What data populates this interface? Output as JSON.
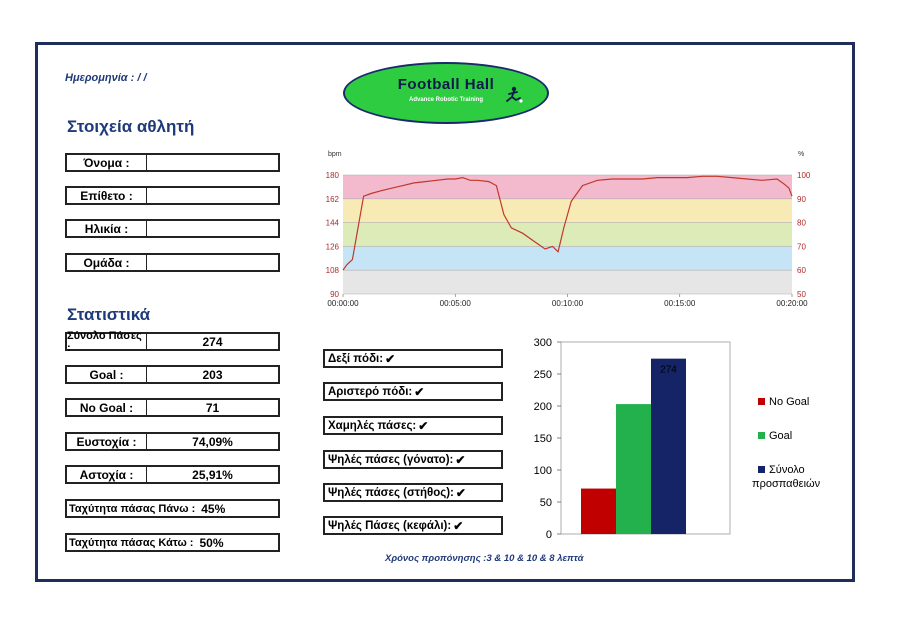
{
  "header": {
    "date_label": "Ημερομηνία : / /",
    "logo": {
      "title": "Football Hall",
      "subtitle": "Advance Robotic Training"
    }
  },
  "athlete": {
    "title": "Στοιχεία αθλητή",
    "fields": [
      {
        "label": "Όνομα :",
        "value": ""
      },
      {
        "label": "Επίθετο :",
        "value": ""
      },
      {
        "label": "Ηλικία :",
        "value": ""
      },
      {
        "label": "Ομάδα :",
        "value": ""
      }
    ]
  },
  "stats": {
    "title": "Στατιστικά",
    "rows": [
      {
        "label": "Σύνολο Πάσες :",
        "value": "274"
      },
      {
        "label": "Goal :",
        "value": "203"
      },
      {
        "label": "No Goal :",
        "value": "71"
      },
      {
        "label": "Ευστοχία :",
        "value": "74,09%"
      },
      {
        "label": "Αστοχία :",
        "value": "25,91%"
      },
      {
        "label": "Ταχύτητα πάσας Πάνω :",
        "value": "45%"
      },
      {
        "label": "Ταχύτητα πάσας Κάτω :",
        "value": "50%"
      }
    ]
  },
  "skills": [
    {
      "label": "Δεξί πόδι:",
      "check": "✔"
    },
    {
      "label": "Αριστερό πόδι:",
      "check": "✔"
    },
    {
      "label": "Χαμηλές  πάσες:",
      "check": "✔"
    },
    {
      "label": "Ψηλές πάσες (γόνατο):",
      "check": "✔"
    },
    {
      "label": "Ψηλές πάσες (στήθος):",
      "check": "✔"
    },
    {
      "label": "Ψηλές Πάσες (κεφάλι):",
      "check": "✔"
    }
  ],
  "footer": {
    "training_time": "Χρόνος προπόνησης :3 & 10 & 10 & 8 λεπτά"
  },
  "chart_data": [
    {
      "type": "line",
      "ylabel_left": "bpm",
      "ylabel_right": "%",
      "ylim": [
        90,
        180
      ],
      "yticks": [
        90,
        108,
        126,
        144,
        162,
        180
      ],
      "yticks_right": [
        50,
        60,
        70,
        80,
        90,
        100
      ],
      "xticks": [
        "00:00:00",
        "00:05:00",
        "00:10:00",
        "00:15:00",
        "00:20:00"
      ],
      "xlim_seconds": [
        0,
        1200
      ],
      "zones": [
        {
          "from": 90,
          "to": 108,
          "color": "#e6e6e6"
        },
        {
          "from": 108,
          "to": 126,
          "color": "#c5e5f6"
        },
        {
          "from": 126,
          "to": 144,
          "color": "#dcebb8"
        },
        {
          "from": 144,
          "to": 162,
          "color": "#f7eab5"
        },
        {
          "from": 162,
          "to": 180,
          "color": "#f3b9cd"
        }
      ],
      "line_color": "#c0392b",
      "points": [
        [
          0,
          108
        ],
        [
          10,
          112
        ],
        [
          25,
          116
        ],
        [
          40,
          140
        ],
        [
          55,
          164
        ],
        [
          75,
          166
        ],
        [
          100,
          168
        ],
        [
          130,
          170
        ],
        [
          160,
          172
        ],
        [
          190,
          174
        ],
        [
          220,
          175
        ],
        [
          250,
          176
        ],
        [
          280,
          177
        ],
        [
          300,
          177
        ],
        [
          320,
          178
        ],
        [
          340,
          176
        ],
        [
          360,
          176
        ],
        [
          390,
          175
        ],
        [
          410,
          172
        ],
        [
          430,
          150
        ],
        [
          450,
          140
        ],
        [
          480,
          136
        ],
        [
          510,
          130
        ],
        [
          540,
          124
        ],
        [
          560,
          126
        ],
        [
          575,
          122
        ],
        [
          590,
          140
        ],
        [
          610,
          160
        ],
        [
          640,
          172
        ],
        [
          680,
          176
        ],
        [
          720,
          177
        ],
        [
          760,
          177
        ],
        [
          800,
          177
        ],
        [
          840,
          178
        ],
        [
          880,
          178
        ],
        [
          920,
          178
        ],
        [
          960,
          179
        ],
        [
          1000,
          179
        ],
        [
          1040,
          178
        ],
        [
          1080,
          177
        ],
        [
          1120,
          176
        ],
        [
          1160,
          177
        ],
        [
          1180,
          173
        ],
        [
          1192,
          170
        ],
        [
          1200,
          164
        ]
      ]
    },
    {
      "type": "bar",
      "categories": [
        "No Goal",
        "Goal",
        "Σύνολο προσπαθειών"
      ],
      "values": [
        71,
        203,
        274
      ],
      "colors": [
        "#c00000",
        "#22b14c",
        "#142466"
      ],
      "ylim": [
        0,
        300
      ],
      "yticks": [
        0,
        50,
        100,
        150,
        200,
        250,
        300
      ],
      "data_labels": [
        "",
        "",
        "274"
      ],
      "legend": [
        {
          "name": "No Goal",
          "color": "#c00000"
        },
        {
          "name": "Goal",
          "color": "#22b14c"
        },
        {
          "name": "Σύνολο",
          "name2": "προσπαθειών",
          "color": "#142466"
        }
      ]
    }
  ]
}
